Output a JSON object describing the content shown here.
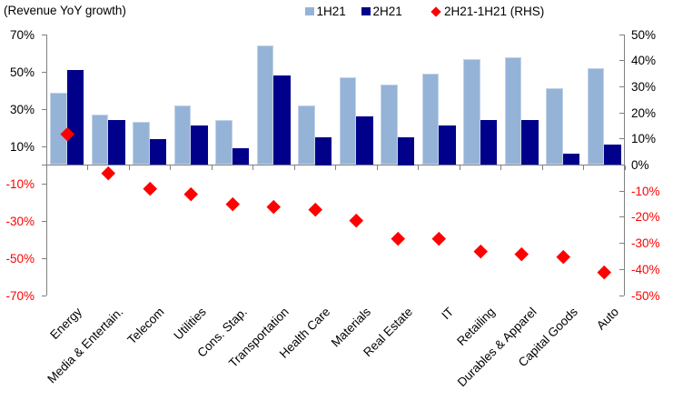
{
  "chart_data": {
    "type": "bar",
    "title": "(Revenue YoY growth)",
    "legend_position": "top",
    "grid": false,
    "categories": [
      "Energy",
      "Media & Entertain.",
      "Telecom",
      "Utilities",
      "Cons. Stap.",
      "Transportation",
      "Health Care",
      "Materials",
      "Real Estate",
      "IT",
      "Retailing",
      "Durables & Apparel",
      "Capital Goods",
      "Auto"
    ],
    "series": [
      {
        "name": "1H21",
        "type": "bar",
        "axis": "left",
        "color": "#95B3D7",
        "values": [
          39,
          27,
          23,
          32,
          24,
          64,
          32,
          47,
          43,
          49,
          57,
          58,
          41,
          52
        ]
      },
      {
        "name": "2H21",
        "type": "bar",
        "axis": "left",
        "color": "#00008B",
        "values": [
          51,
          24,
          14,
          21,
          9,
          48,
          15,
          26,
          15,
          21,
          24,
          24,
          6,
          11
        ]
      },
      {
        "name": "2H21-1H21 (RHS)",
        "type": "scatter",
        "marker": "diamond",
        "axis": "right",
        "color": "#FF0000",
        "values": [
          12,
          -3,
          -9,
          -11,
          -15,
          -16,
          -17,
          -21,
          -28,
          -28,
          -33,
          -34,
          -35,
          -41
        ]
      }
    ],
    "left_axis": {
      "min": -70,
      "max": 70,
      "step": 20,
      "tick_values": [
        70,
        50,
        30,
        10,
        -10,
        -30,
        -50,
        -70
      ],
      "tick_labels": [
        "70%",
        "50%",
        "30%",
        "10%",
        "-10%",
        "-30%",
        "-50%",
        "-70%"
      ]
    },
    "right_axis": {
      "min": -50,
      "max": 50,
      "step": 10,
      "tick_values": [
        50,
        40,
        30,
        20,
        10,
        0,
        -10,
        -20,
        -30,
        -40,
        -50
      ],
      "tick_labels": [
        "50%",
        "40%",
        "30%",
        "20%",
        "10%",
        "0%",
        "-10%",
        "-20%",
        "-30%",
        "-40%",
        "-50%"
      ]
    },
    "negative_label_color": "#FF0000",
    "axis_line_color": "#808080"
  },
  "legend": [
    {
      "label": "1H21",
      "marker": "square",
      "color": "#95B3D7"
    },
    {
      "label": "2H21",
      "marker": "square",
      "color": "#00008B"
    },
    {
      "label": "2H21-1H21 (RHS)",
      "marker": "diamond",
      "color": "#FF0000"
    }
  ]
}
